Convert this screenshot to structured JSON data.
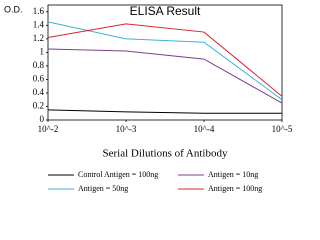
{
  "chart_data": {
    "type": "line",
    "title": "ELISA Result",
    "y_label": "O.D.",
    "x_label": "Serial Dilutions of Antibody",
    "categories": [
      "10^-2",
      "10^-3",
      "10^-4",
      "10^-5"
    ],
    "series": [
      {
        "name": "Control Antigen = 100ng",
        "color": "#000000",
        "values": [
          0.15,
          0.12,
          0.1,
          0.1
        ]
      },
      {
        "name": "Antigen = 10ng",
        "color": "#7a3f8c",
        "values": [
          1.05,
          1.02,
          0.9,
          0.25
        ]
      },
      {
        "name": "Antigen = 50ng",
        "color": "#3fb0d8",
        "values": [
          1.45,
          1.2,
          1.15,
          0.3
        ]
      },
      {
        "name": "Antigen = 100ng",
        "color": "#d8232a",
        "values": [
          1.22,
          1.42,
          1.3,
          0.35
        ]
      }
    ],
    "ylim": [
      0,
      1.7
    ],
    "yticks": [
      0,
      0.2,
      0.4,
      0.6,
      0.8,
      1,
      1.2,
      1.4,
      1.6
    ]
  }
}
